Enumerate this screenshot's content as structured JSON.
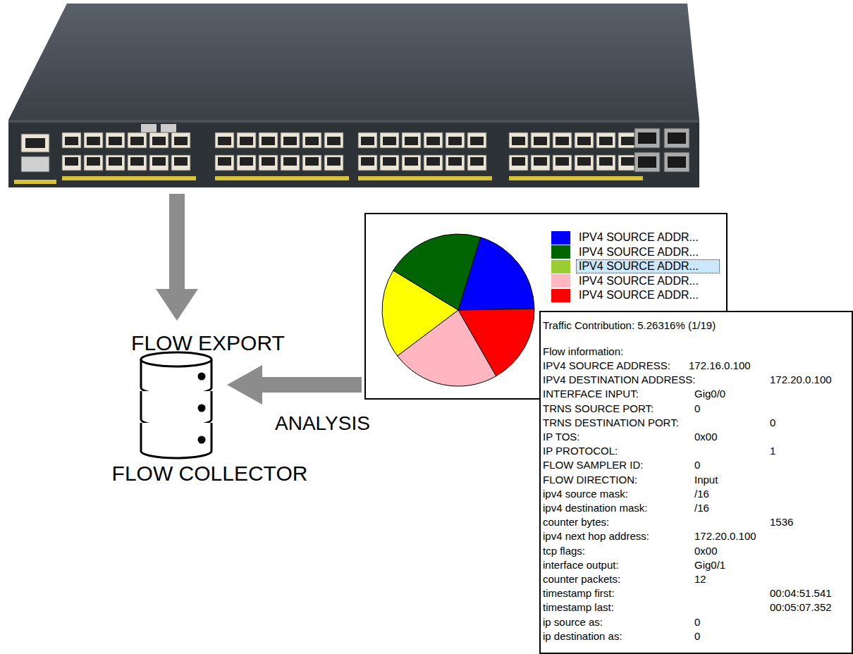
{
  "labels": {
    "flow_export": "FLOW EXPORT",
    "flow_collector": "FLOW COLLECTOR",
    "analysis": "ANALYSIS"
  },
  "chart_data": {
    "type": "pie",
    "values": [
      20,
      17,
      23,
      19,
      21
    ],
    "colors": [
      "#0000ff",
      "#ff0000",
      "#ffb6c1",
      "#ffff00",
      "#006400"
    ]
  },
  "legend": [
    {
      "label": "IPV4 SOURCE ADDR...",
      "color": "#0000ff"
    },
    {
      "label": "IPV4 SOURCE ADDR...",
      "color": "#006400"
    },
    {
      "label": "IPV4 SOURCE ADDR...",
      "color": "#9acd32"
    },
    {
      "label": "IPV4 SOURCE ADDR...",
      "color": "#ffb6c1"
    },
    {
      "label": "IPV4 SOURCE ADDR...",
      "color": "#ff0000"
    }
  ],
  "flow_detail": {
    "title": "Traffic Contribution: 5.26316% (1/19)",
    "heading": "Flow information:",
    "rows": [
      {
        "label": "IPV4 SOURCE ADDRESS:",
        "value": "172.16.0.100"
      },
      {
        "label": "IPV4 DESTINATION ADDRESS:",
        "value": "172.20.0.100"
      },
      {
        "label": "INTERFACE INPUT:",
        "value": "Gig0/0"
      },
      {
        "label": "TRNS SOURCE PORT:",
        "value": "0"
      },
      {
        "label": "TRNS DESTINATION PORT:",
        "value": "0"
      },
      {
        "label": "IP TOS:",
        "value": "0x00"
      },
      {
        "label": "IP PROTOCOL:",
        "value": "1"
      },
      {
        "label": "FLOW SAMPLER ID:",
        "value": "0"
      },
      {
        "label": "FLOW DIRECTION:",
        "value": "Input"
      },
      {
        "label": "ipv4 source mask:",
        "value": "/16"
      },
      {
        "label": "ipv4 destination mask:",
        "value": "/16"
      },
      {
        "label": "counter bytes:",
        "value": "1536"
      },
      {
        "label": "ipv4 next hop address:",
        "value": "172.20.0.100"
      },
      {
        "label": "tcp flags:",
        "value": "0x00"
      },
      {
        "label": "interface output:",
        "value": "Gig0/1"
      },
      {
        "label": "counter packets:",
        "value": "12"
      },
      {
        "label": "timestamp first:",
        "value": "00:04:51.541"
      },
      {
        "label": "timestamp last:",
        "value": "00:05:07.352"
      },
      {
        "label": "ip source as:",
        "value": "0"
      },
      {
        "label": "ip destination as:",
        "value": "0"
      }
    ]
  }
}
